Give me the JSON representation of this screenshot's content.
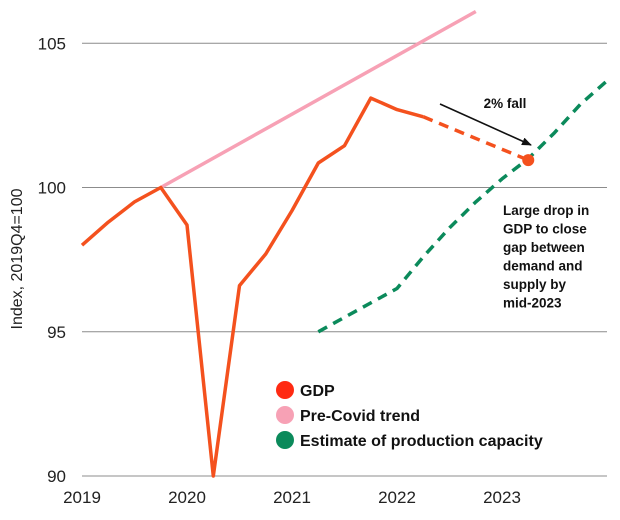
{
  "chart_data": {
    "type": "line",
    "title": "",
    "xlabel": "",
    "ylabel": "Index, 2019Q4=100",
    "xlim": [
      2019.0,
      2024.0
    ],
    "ylim": [
      90,
      106.5
    ],
    "grid": "horizontal",
    "x_ticks": [
      {
        "value": 2019,
        "label": "2019"
      },
      {
        "value": 2020,
        "label": "2020"
      },
      {
        "value": 2021,
        "label": "2021"
      },
      {
        "value": 2022,
        "label": "2022"
      },
      {
        "value": 2023,
        "label": "2023"
      }
    ],
    "y_ticks": [
      {
        "value": 90,
        "label": "90"
      },
      {
        "value": 95,
        "label": "95"
      },
      {
        "value": 100,
        "label": "100"
      },
      {
        "value": 105,
        "label": "105"
      }
    ],
    "series": [
      {
        "name": "GDP",
        "color": "#f4511e",
        "style": "solid",
        "points": [
          [
            2019.0,
            98.0
          ],
          [
            2019.25,
            98.8
          ],
          [
            2019.5,
            99.5
          ],
          [
            2019.75,
            100.0
          ],
          [
            2020.0,
            98.7
          ],
          [
            2020.25,
            90.0
          ],
          [
            2020.5,
            96.6
          ],
          [
            2020.75,
            97.7
          ],
          [
            2021.0,
            99.2
          ],
          [
            2021.25,
            100.85
          ],
          [
            2021.5,
            101.45
          ],
          [
            2021.75,
            103.1
          ],
          [
            2022.0,
            102.7
          ],
          [
            2022.25,
            102.45
          ]
        ]
      },
      {
        "name": "GDP projection",
        "color": "#f4511e",
        "style": "dashed",
        "points": [
          [
            2022.25,
            102.45
          ],
          [
            2023.25,
            100.95
          ]
        ],
        "end_marker": true
      },
      {
        "name": "Pre-Covid trend",
        "color": "#f7a1b5",
        "style": "solid",
        "points": [
          [
            2019.75,
            100.0
          ],
          [
            2022.75,
            106.1
          ]
        ]
      },
      {
        "name": "Estimate of production capacity",
        "color": "#0b8a5b",
        "style": "dashed",
        "points": [
          [
            2021.25,
            95.0
          ],
          [
            2021.5,
            95.5
          ],
          [
            2021.75,
            96.0
          ],
          [
            2022.0,
            96.5
          ],
          [
            2022.25,
            97.6
          ],
          [
            2022.5,
            98.6
          ],
          [
            2022.75,
            99.5
          ],
          [
            2023.0,
            100.3
          ],
          [
            2023.25,
            101.0
          ],
          [
            2023.5,
            101.9
          ],
          [
            2023.75,
            102.9
          ],
          [
            2024.0,
            103.7
          ]
        ]
      }
    ],
    "annotations": [
      {
        "id": "fall",
        "text": "2% fall"
      },
      {
        "id": "drop",
        "lines": [
          "Large drop in",
          "GDP to close",
          "gap between",
          "demand and",
          "supply by",
          "mid-2023"
        ]
      }
    ],
    "legend": {
      "position": "bottom-right",
      "entries": [
        {
          "label": "GDP",
          "color": "#ff2a12"
        },
        {
          "label": "Pre-Covid trend",
          "color": "#f7a1b5"
        },
        {
          "label": "Estimate of production capacity",
          "color": "#0b8a5b"
        }
      ]
    }
  }
}
